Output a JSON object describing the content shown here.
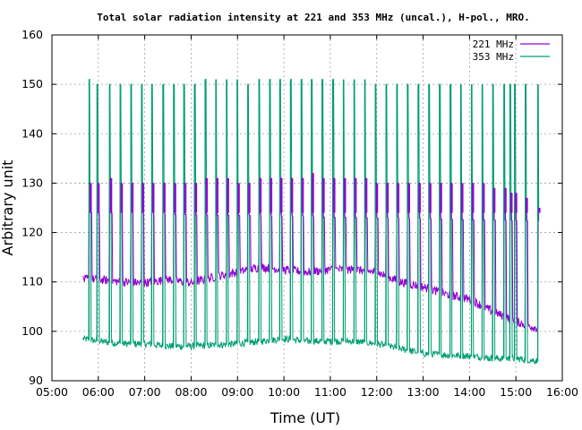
{
  "chart_data": {
    "type": "line",
    "title": "Total solar radiation intensity at 221 and 353 MHz (uncal.), H-pol., MRO.",
    "xlabel": "Time (UT)",
    "ylabel": "Arbitrary unit",
    "xlim": [
      5.0,
      16.0
    ],
    "ylim": [
      90,
      160
    ],
    "xticks": [
      "05:00",
      "06:00",
      "07:00",
      "08:00",
      "09:00",
      "10:00",
      "11:00",
      "12:00",
      "13:00",
      "14:00",
      "15:00",
      "16:00"
    ],
    "yticks": [
      90,
      100,
      110,
      120,
      130,
      140,
      150,
      160
    ],
    "grid": true,
    "legend_position": "top-right",
    "series_colors": {
      "221 MHz": "#9400d3",
      "353 MHz": "#009e73"
    },
    "series": [
      {
        "name": "221 MHz",
        "x": [
          5.67,
          6.0,
          6.5,
          7.0,
          7.5,
          8.0,
          8.5,
          9.0,
          9.5,
          10.0,
          10.5,
          11.0,
          11.5,
          12.0,
          12.5,
          13.0,
          13.5,
          14.0,
          14.5,
          15.0,
          15.5
        ],
        "values": [
          110.5,
          110.5,
          110.0,
          109.8,
          110.5,
          109.8,
          111.0,
          112.0,
          113.0,
          112.5,
          112.0,
          112.5,
          112.5,
          112.0,
          110.0,
          109.0,
          107.5,
          106.5,
          104.0,
          102.0,
          100.5
        ]
      },
      {
        "name": "353 MHz",
        "x": [
          5.67,
          6.0,
          6.5,
          7.0,
          7.5,
          8.0,
          8.5,
          9.0,
          9.5,
          10.0,
          10.5,
          11.0,
          11.5,
          12.0,
          12.5,
          13.0,
          13.5,
          14.0,
          14.5,
          15.0,
          15.5
        ],
        "values": [
          98.5,
          98.0,
          97.5,
          97.5,
          97.0,
          97.0,
          97.2,
          97.5,
          98.0,
          98.5,
          98.0,
          98.0,
          98.0,
          97.5,
          96.5,
          95.5,
          95.2,
          95.0,
          94.5,
          94.5,
          94.0
        ]
      }
    ],
    "calibration_x": [
      5.83,
      6.0,
      6.27,
      6.5,
      6.73,
      6.96,
      7.18,
      7.42,
      7.65,
      7.87,
      8.1,
      8.33,
      8.56,
      8.79,
      9.02,
      9.25,
      9.49,
      9.72,
      9.94,
      10.17,
      10.4,
      10.62,
      10.85,
      11.08,
      11.31,
      11.54,
      11.77,
      12.0,
      12.23,
      12.46,
      12.69,
      12.92,
      13.15,
      13.38,
      13.61,
      13.84,
      14.07,
      14.3,
      14.53,
      14.77,
      14.9,
      15.0,
      15.23,
      15.5
    ],
    "calibration_221_peak": [
      130,
      130,
      131,
      130,
      130,
      130,
      130,
      130,
      130,
      130,
      130,
      131,
      131,
      131,
      130,
      130,
      131,
      131,
      131,
      131,
      131,
      132,
      131,
      131,
      131,
      131,
      131,
      130,
      130,
      130,
      130,
      130,
      130,
      130,
      130,
      130,
      130,
      130,
      129,
      129,
      128,
      128,
      127,
      125
    ],
    "calibration_353_peak": [
      151,
      150,
      150,
      150,
      150,
      150,
      150,
      150,
      150,
      150,
      150,
      151,
      151,
      151,
      151,
      150,
      151,
      151,
      151,
      151,
      151,
      151,
      151,
      151,
      151,
      151,
      151,
      150,
      150,
      150,
      150,
      150,
      150,
      150,
      150,
      150,
      150,
      150,
      150,
      150,
      150,
      150,
      150,
      150
    ]
  }
}
